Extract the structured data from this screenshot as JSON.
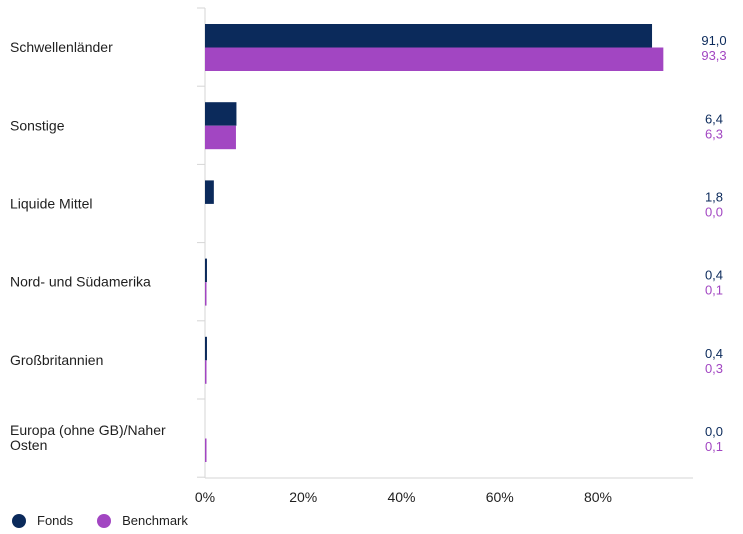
{
  "chart_data": {
    "type": "bar",
    "orientation": "horizontal",
    "categories": [
      [
        "Schwellenländer"
      ],
      [
        "Sonstige"
      ],
      [
        "Liquide Mittel"
      ],
      [
        "Nord- und Südamerika"
      ],
      [
        "Großbritannien"
      ],
      [
        "Europa (ohne GB)/Naher",
        "Osten"
      ]
    ],
    "series": [
      {
        "name": "Fonds",
        "color": "#0b2a5b",
        "values": [
          91.0,
          6.4,
          1.8,
          0.4,
          0.4,
          0.0
        ],
        "labels": [
          "91,0",
          "6,4",
          "1,8",
          "0,4",
          "0,4",
          "0,0"
        ]
      },
      {
        "name": "Benchmark",
        "color": "#a246c2",
        "values": [
          93.3,
          6.3,
          0.0,
          0.1,
          0.3,
          0.1
        ],
        "labels": [
          "93,3",
          "6,3",
          "0,0",
          "0,1",
          "0,3",
          "0,1"
        ]
      }
    ],
    "x_ticks": [
      0,
      20,
      40,
      60,
      80
    ],
    "x_tick_labels": [
      "0%",
      "20%",
      "40%",
      "60%",
      "80%"
    ],
    "xlim": [
      0,
      100
    ],
    "grid": false,
    "legend_position": "bottom-left"
  }
}
